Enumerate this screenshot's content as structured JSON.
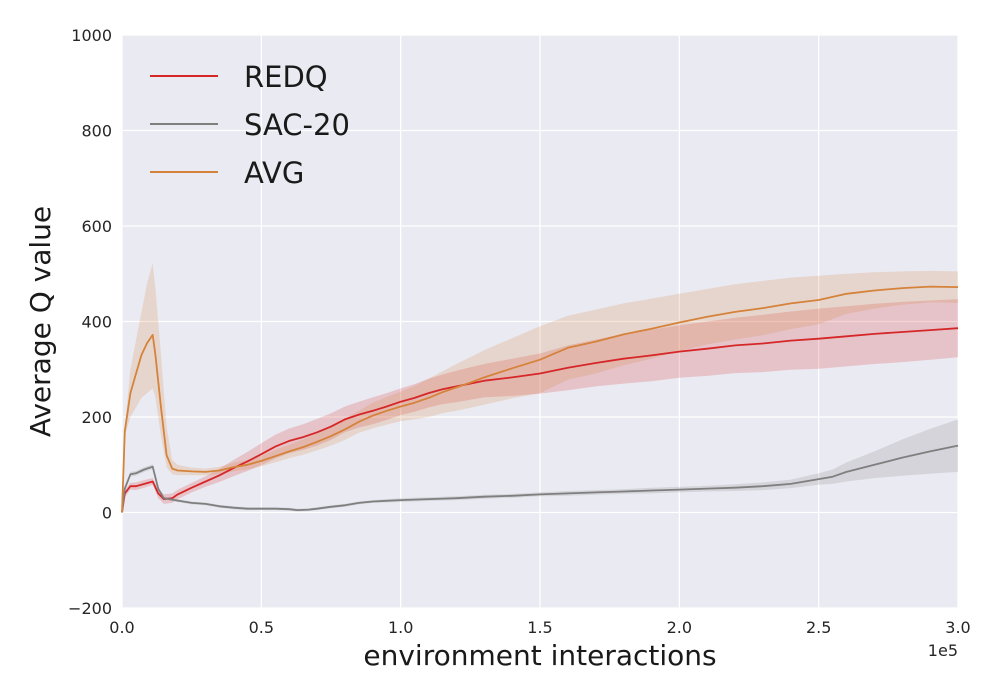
{
  "chart_data": {
    "type": "line",
    "title": "",
    "xlabel": "environment interactions",
    "ylabel": "Average Q value",
    "x_offset_label": "1e5",
    "xlim": [
      0.0,
      3.0
    ],
    "ylim": [
      -200,
      1000
    ],
    "x_ticks": [
      0.0,
      0.5,
      1.0,
      1.5,
      2.0,
      2.5,
      3.0
    ],
    "x_tick_labels": [
      "0.0",
      "0.5",
      "1.0",
      "1.5",
      "2.0",
      "2.5",
      "3.0"
    ],
    "y_ticks": [
      -200,
      0,
      200,
      400,
      600,
      800,
      1000
    ],
    "y_tick_labels": [
      "−200",
      "0",
      "200",
      "400",
      "600",
      "800",
      "1000"
    ],
    "grid": true,
    "background": "#eaeaf2",
    "legend_position": "upper-left",
    "series": [
      {
        "name": "REDQ",
        "color": "#d62728",
        "x": [
          0.0,
          0.01,
          0.03,
          0.05,
          0.08,
          0.11,
          0.13,
          0.15,
          0.18,
          0.2,
          0.25,
          0.3,
          0.35,
          0.4,
          0.45,
          0.5,
          0.55,
          0.6,
          0.65,
          0.7,
          0.75,
          0.8,
          0.85,
          0.9,
          0.95,
          1.0,
          1.05,
          1.1,
          1.15,
          1.2,
          1.25,
          1.3,
          1.4,
          1.5,
          1.6,
          1.7,
          1.8,
          1.9,
          2.0,
          2.1,
          2.2,
          2.3,
          2.4,
          2.5,
          2.6,
          2.7,
          2.8,
          2.9,
          3.0
        ],
        "y": [
          0,
          40,
          55,
          55,
          60,
          65,
          40,
          28,
          30,
          38,
          52,
          65,
          78,
          93,
          107,
          122,
          138,
          150,
          158,
          168,
          180,
          195,
          205,
          213,
          222,
          232,
          240,
          250,
          258,
          264,
          270,
          276,
          283,
          291,
          303,
          313,
          322,
          329,
          337,
          343,
          350,
          354,
          360,
          364,
          369,
          374,
          378,
          382,
          386
        ],
        "band_upper": [
          0,
          48,
          62,
          63,
          68,
          72,
          50,
          38,
          40,
          48,
          62,
          76,
          92,
          110,
          127,
          145,
          163,
          176,
          185,
          196,
          208,
          222,
          232,
          241,
          250,
          260,
          269,
          280,
          289,
          297,
          304,
          311,
          322,
          333,
          350,
          362,
          374,
          383,
          392,
          400,
          408,
          414,
          421,
          427,
          432,
          437,
          441,
          444,
          447
        ],
        "band_lower": [
          0,
          32,
          48,
          47,
          52,
          58,
          30,
          18,
          20,
          28,
          42,
          54,
          64,
          76,
          87,
          99,
          113,
          124,
          131,
          140,
          152,
          168,
          178,
          185,
          194,
          204,
          211,
          220,
          227,
          231,
          236,
          241,
          244,
          249,
          256,
          264,
          270,
          275,
          282,
          286,
          292,
          294,
          299,
          301,
          306,
          311,
          315,
          320,
          325
        ]
      },
      {
        "name": "SAC-20",
        "color": "#7f7f7f",
        "x": [
          0.0,
          0.01,
          0.03,
          0.05,
          0.08,
          0.11,
          0.13,
          0.15,
          0.18,
          0.2,
          0.25,
          0.3,
          0.35,
          0.4,
          0.45,
          0.5,
          0.55,
          0.6,
          0.63,
          0.67,
          0.7,
          0.75,
          0.8,
          0.85,
          0.9,
          1.0,
          1.1,
          1.2,
          1.3,
          1.4,
          1.5,
          1.6,
          1.7,
          1.8,
          1.9,
          2.0,
          2.1,
          2.2,
          2.3,
          2.4,
          2.5,
          2.55,
          2.6,
          2.7,
          2.8,
          2.9,
          3.0
        ],
        "y": [
          0,
          50,
          80,
          82,
          90,
          96,
          50,
          30,
          27,
          25,
          20,
          18,
          13,
          10,
          8,
          8,
          8,
          7,
          5,
          6,
          8,
          12,
          15,
          20,
          23,
          26,
          28,
          30,
          33,
          35,
          38,
          40,
          42,
          44,
          46,
          48,
          50,
          52,
          55,
          60,
          70,
          75,
          85,
          100,
          115,
          128,
          140
        ],
        "band_upper": [
          0,
          54,
          85,
          87,
          95,
          101,
          54,
          33,
          30,
          28,
          23,
          21,
          16,
          13,
          11,
          11,
          11,
          10,
          8,
          9,
          11,
          15,
          18,
          23,
          26,
          30,
          32,
          34,
          37,
          39,
          42,
          45,
          47,
          49,
          52,
          54,
          56,
          59,
          63,
          69,
          82,
          90,
          105,
          128,
          153,
          175,
          195
        ],
        "band_lower": [
          0,
          46,
          75,
          77,
          85,
          91,
          46,
          27,
          24,
          22,
          17,
          15,
          10,
          7,
          5,
          5,
          5,
          4,
          2,
          3,
          5,
          9,
          12,
          17,
          20,
          22,
          24,
          26,
          29,
          31,
          34,
          35,
          37,
          39,
          40,
          42,
          44,
          45,
          47,
          51,
          58,
          60,
          65,
          72,
          77,
          81,
          85
        ]
      },
      {
        "name": "AVG",
        "color": "#d5823a",
        "x": [
          0.0,
          0.01,
          0.03,
          0.05,
          0.07,
          0.09,
          0.11,
          0.12,
          0.14,
          0.16,
          0.18,
          0.2,
          0.25,
          0.3,
          0.35,
          0.4,
          0.45,
          0.5,
          0.55,
          0.6,
          0.65,
          0.7,
          0.75,
          0.8,
          0.85,
          0.9,
          0.95,
          1.0,
          1.05,
          1.1,
          1.15,
          1.2,
          1.25,
          1.3,
          1.4,
          1.5,
          1.6,
          1.7,
          1.8,
          1.9,
          2.0,
          2.1,
          2.2,
          2.3,
          2.4,
          2.5,
          2.6,
          2.7,
          2.8,
          2.9,
          3.0
        ],
        "y": [
          0,
          170,
          250,
          290,
          330,
          355,
          372,
          330,
          220,
          120,
          92,
          88,
          86,
          85,
          88,
          95,
          100,
          108,
          118,
          128,
          137,
          148,
          160,
          174,
          190,
          203,
          213,
          222,
          230,
          240,
          252,
          262,
          272,
          283,
          302,
          320,
          345,
          358,
          373,
          385,
          398,
          410,
          420,
          428,
          438,
          445,
          458,
          465,
          470,
          473,
          472
        ],
        "band_upper": [
          0,
          180,
          300,
          360,
          420,
          480,
          522,
          470,
          330,
          180,
          110,
          100,
          94,
          92,
          96,
          104,
          110,
          119,
          131,
          142,
          153,
          166,
          180,
          196,
          213,
          230,
          242,
          253,
          265,
          280,
          296,
          311,
          325,
          340,
          365,
          390,
          412,
          425,
          438,
          448,
          458,
          468,
          478,
          485,
          492,
          496,
          500,
          503,
          505,
          506,
          505
        ],
        "band_lower": [
          0,
          160,
          200,
          220,
          240,
          250,
          260,
          240,
          160,
          95,
          80,
          78,
          78,
          78,
          80,
          86,
          90,
          97,
          105,
          114,
          121,
          130,
          140,
          152,
          167,
          176,
          184,
          191,
          195,
          200,
          208,
          213,
          219,
          226,
          239,
          250,
          278,
          291,
          308,
          322,
          338,
          352,
          362,
          371,
          384,
          394,
          416,
          427,
          435,
          440,
          439
        ]
      }
    ]
  }
}
